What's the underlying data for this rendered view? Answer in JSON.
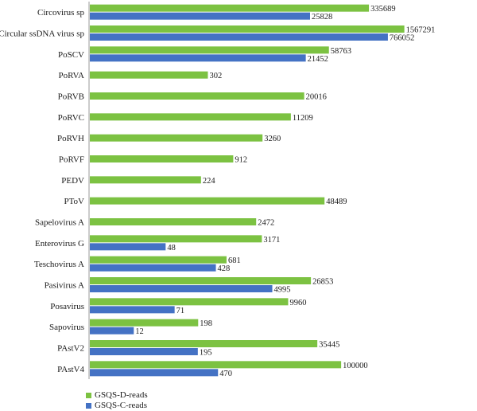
{
  "chart_data": {
    "type": "bar",
    "orientation": "horizontal",
    "categories": [
      "Circovirus sp",
      "Circular ssDNA virus sp",
      "PoSCV",
      "PoRVA",
      "PoRVB",
      "PoRVC",
      "PoRVH",
      "PoRVF",
      "PEDV",
      "PToV",
      "Sapelovirus A",
      "Enterovirus G",
      "Teschovirus A",
      "Pasivirus A",
      "Posavirus",
      "Sapovirus",
      "PAstV2",
      "PAstV4"
    ],
    "series": [
      {
        "name": "GSQS-D-reads",
        "color": "#7cc242",
        "values": [
          335689,
          1567291,
          58763,
          302,
          20016,
          11209,
          3260,
          912,
          224,
          48489,
          2472,
          3171,
          681,
          26853,
          9960,
          198,
          35445,
          100000
        ],
        "labels": [
          "335689",
          "1567291",
          "58763",
          "302",
          "20016",
          "11209",
          "3260",
          "912",
          "224",
          "48489",
          "2472",
          "3171",
          "681",
          "26853",
          "9960",
          "198",
          "35445",
          "100000"
        ]
      },
      {
        "name": "GSQS-C-reads",
        "color": "#4472c4",
        "values": [
          25828,
          766052,
          21452,
          null,
          null,
          null,
          null,
          null,
          null,
          null,
          null,
          48,
          428,
          4995,
          71,
          12,
          195,
          470
        ],
        "labels": [
          "25828",
          "766052",
          "21452",
          "",
          "",
          "",
          "",
          "",
          "",
          "",
          "",
          "48",
          "428",
          "4995",
          "71",
          "12",
          "195",
          "470"
        ]
      }
    ],
    "xscale": "log",
    "grid": false,
    "legend_position": "bottom-left"
  }
}
